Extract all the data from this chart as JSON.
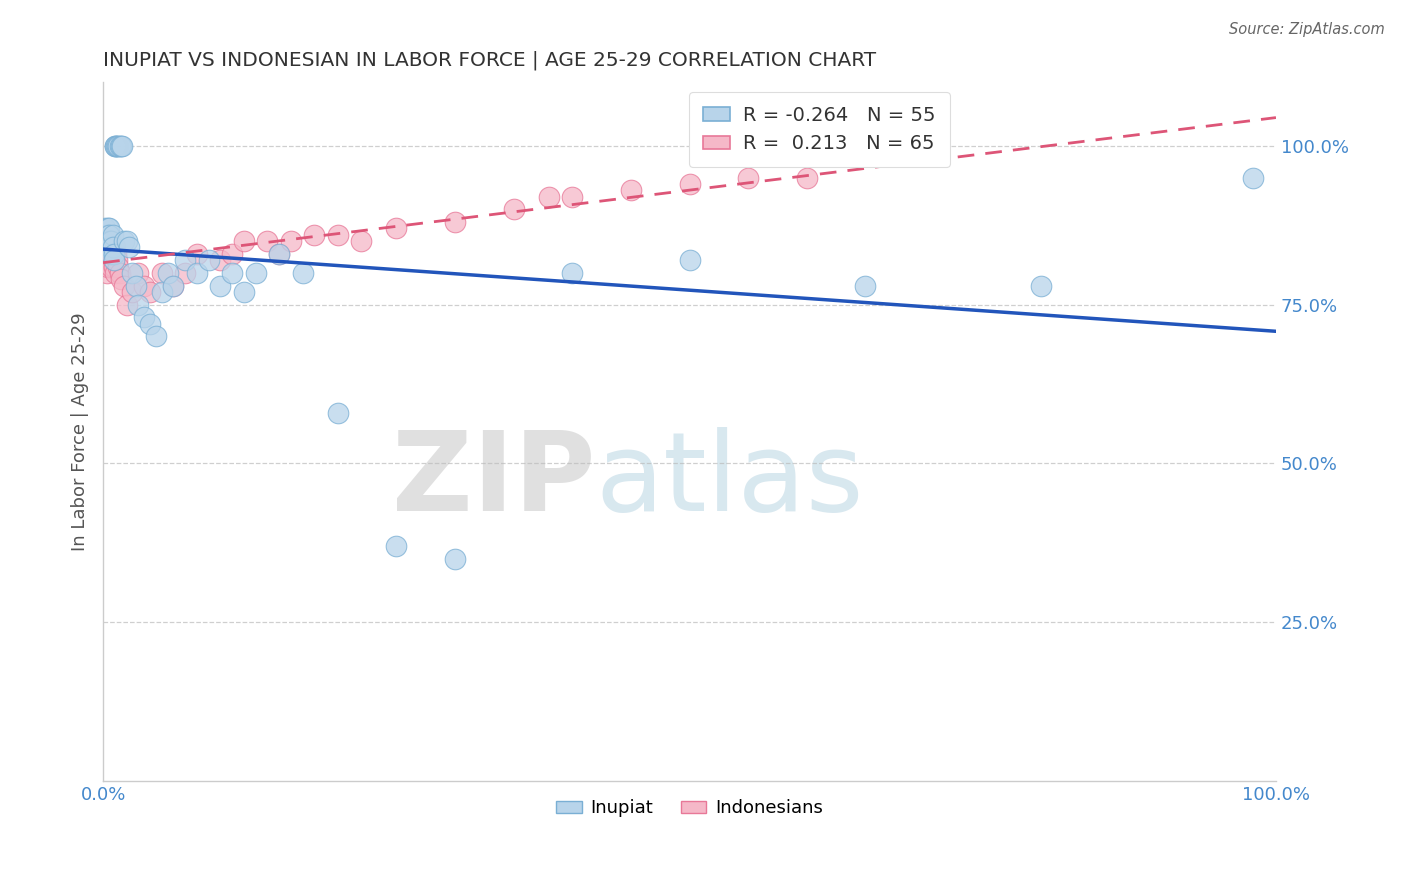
{
  "title": "INUPIAT VS INDONESIAN IN LABOR FORCE | AGE 25-29 CORRELATION CHART",
  "source_text": "Source: ZipAtlas.com",
  "ylabel": "In Labor Force | Age 25-29",
  "watermark_zip": "ZIP",
  "watermark_atlas": "atlas",
  "legend_blue": {
    "R": -0.264,
    "N": 55,
    "label": "Inupiat"
  },
  "legend_pink": {
    "R": 0.213,
    "N": 65,
    "label": "Indonesians"
  },
  "xlim": [
    0.0,
    1.0
  ],
  "ylim": [
    0.0,
    1.1
  ],
  "yticks": [
    0.0,
    0.25,
    0.5,
    0.75,
    1.0
  ],
  "ytick_labels": [
    "",
    "25.0%",
    "50.0%",
    "75.0%",
    "100.0%"
  ],
  "blue_scatter_color": "#b8d4ea",
  "blue_scatter_edge": "#7aafd4",
  "blue_line_color": "#2255bb",
  "pink_scatter_color": "#f5b8c8",
  "pink_scatter_edge": "#e87898",
  "pink_line_color": "#dd5577",
  "grid_color": "#bbbbbb",
  "axis_tick_color": "#4488cc",
  "title_color": "#333333",
  "inupiat_x": [
    0.001,
    0.002,
    0.003,
    0.003,
    0.004,
    0.004,
    0.004,
    0.005,
    0.005,
    0.005,
    0.006,
    0.006,
    0.007,
    0.007,
    0.008,
    0.008,
    0.009,
    0.009,
    0.01,
    0.01,
    0.011,
    0.012,
    0.013,
    0.014,
    0.015,
    0.016,
    0.018,
    0.02,
    0.022,
    0.025,
    0.028,
    0.03,
    0.035,
    0.04,
    0.045,
    0.05,
    0.055,
    0.06,
    0.07,
    0.08,
    0.09,
    0.1,
    0.11,
    0.12,
    0.13,
    0.15,
    0.17,
    0.2,
    0.25,
    0.3,
    0.4,
    0.5,
    0.65,
    0.8,
    0.98
  ],
  "inupiat_y": [
    0.85,
    0.87,
    0.86,
    0.84,
    0.87,
    0.86,
    0.85,
    0.85,
    0.87,
    0.86,
    0.85,
    0.84,
    0.83,
    0.85,
    0.86,
    0.84,
    0.83,
    0.82,
    1.0,
    1.0,
    1.0,
    1.0,
    1.0,
    1.0,
    1.0,
    1.0,
    0.85,
    0.85,
    0.84,
    0.8,
    0.78,
    0.75,
    0.73,
    0.72,
    0.7,
    0.77,
    0.8,
    0.78,
    0.82,
    0.8,
    0.82,
    0.78,
    0.8,
    0.77,
    0.8,
    0.83,
    0.8,
    0.58,
    0.37,
    0.35,
    0.8,
    0.82,
    0.78,
    0.78,
    0.95
  ],
  "indonesian_x": [
    0.001,
    0.001,
    0.001,
    0.001,
    0.002,
    0.002,
    0.002,
    0.002,
    0.002,
    0.003,
    0.003,
    0.003,
    0.003,
    0.003,
    0.003,
    0.004,
    0.004,
    0.004,
    0.004,
    0.005,
    0.005,
    0.005,
    0.005,
    0.006,
    0.006,
    0.007,
    0.007,
    0.008,
    0.008,
    0.009,
    0.01,
    0.01,
    0.011,
    0.012,
    0.013,
    0.014,
    0.015,
    0.018,
    0.02,
    0.025,
    0.03,
    0.035,
    0.04,
    0.05,
    0.06,
    0.07,
    0.08,
    0.1,
    0.11,
    0.12,
    0.14,
    0.15,
    0.16,
    0.18,
    0.2,
    0.22,
    0.25,
    0.3,
    0.35,
    0.38,
    0.4,
    0.45,
    0.5,
    0.55,
    0.6
  ],
  "indonesian_y": [
    0.86,
    0.85,
    0.84,
    0.83,
    0.85,
    0.84,
    0.83,
    0.82,
    0.84,
    0.85,
    0.84,
    0.83,
    0.82,
    0.86,
    0.8,
    0.84,
    0.83,
    0.82,
    0.81,
    0.85,
    0.84,
    0.83,
    0.82,
    0.84,
    0.83,
    0.82,
    0.81,
    0.83,
    0.82,
    0.81,
    0.8,
    0.84,
    0.83,
    0.82,
    0.81,
    0.8,
    0.79,
    0.78,
    0.75,
    0.77,
    0.8,
    0.78,
    0.77,
    0.8,
    0.78,
    0.8,
    0.83,
    0.82,
    0.83,
    0.85,
    0.85,
    0.83,
    0.85,
    0.86,
    0.86,
    0.85,
    0.87,
    0.88,
    0.9,
    0.92,
    0.92,
    0.93,
    0.94,
    0.95,
    0.95
  ]
}
